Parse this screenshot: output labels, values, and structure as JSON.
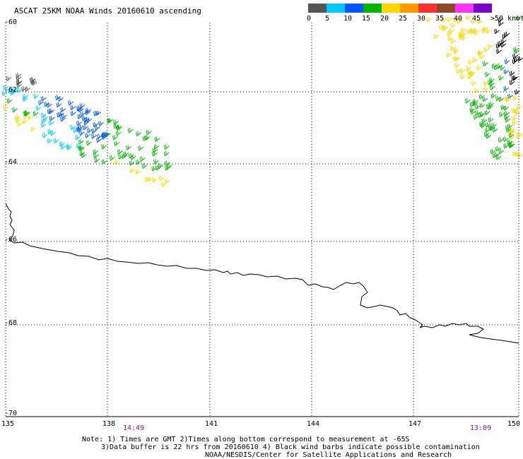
{
  "title": "ASCAT 25KM NOAA Winds 20160610 ascending",
  "legend": {
    "swatches": [
      {
        "color": "#555555"
      },
      {
        "color": "#00c8ff"
      },
      {
        "color": "#0055ff"
      },
      {
        "color": "#00b400"
      },
      {
        "color": "#ffd700"
      },
      {
        "color": "#ff9900"
      },
      {
        "color": "#ff3030"
      },
      {
        "color": "#8a4a2a"
      },
      {
        "color": "#ff33ff"
      },
      {
        "color": "#7a00c8"
      }
    ],
    "labels": [
      "0",
      "5",
      "10",
      "15",
      "20",
      "25",
      "30",
      "35",
      "40",
      "45",
      ">50 knots"
    ]
  },
  "latitude_labels": [
    "-60",
    "-62",
    "-64",
    "-66",
    "-68",
    "-70"
  ],
  "longitude_labels": [
    "135",
    "138",
    "141",
    "144",
    "147",
    "150"
  ],
  "time_labels": [
    "14:49",
    "13:09"
  ],
  "footer": {
    "line1": "Note: 1) Times are GMT 2)Times along bottom correspond to measurement at -65S",
    "line2": "3)Data buffer is 22 hrs from 20160610 4) Black wind barbs indicate possible contamination",
    "line3": "NOAA/NESDIS/Center for Satellite Applications and Research"
  }
}
